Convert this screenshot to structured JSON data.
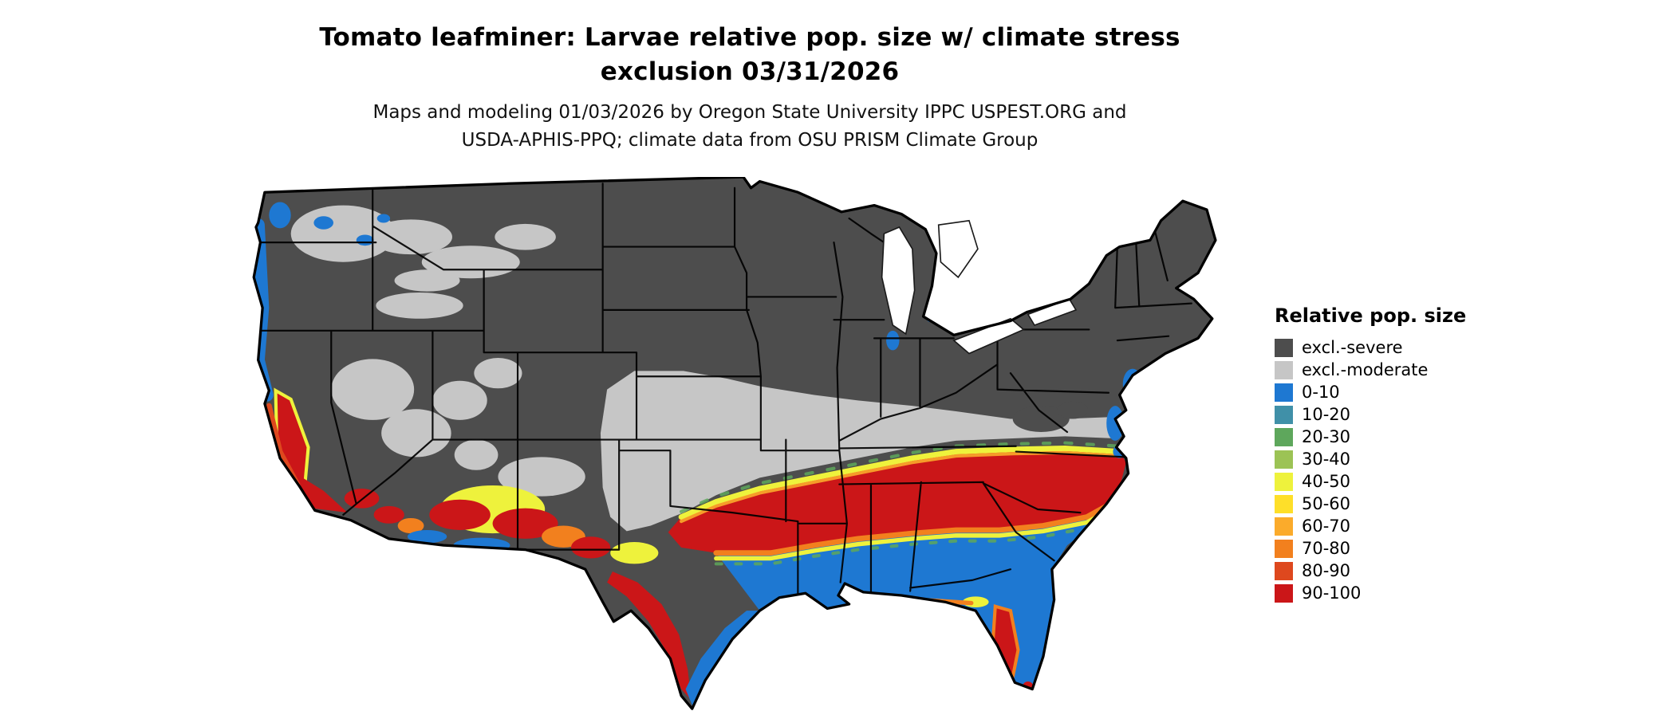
{
  "title": {
    "line1": "Tomato leafminer: Larvae relative pop. size w/ climate stress",
    "line2": "exclusion 03/31/2026"
  },
  "subtitle": {
    "line1": "Maps and modeling 01/03/2026 by Oregon State University IPPC USPEST.ORG and",
    "line2": "USDA-APHIS-PPQ; climate data from OSU PRISM Climate Group"
  },
  "legend": {
    "title": "Relative pop. size",
    "items": [
      {
        "label": "excl.-severe",
        "color": "#4d4d4d"
      },
      {
        "label": "excl.-moderate",
        "color": "#c6c6c6"
      },
      {
        "label": "0-10",
        "color": "#1e78d2"
      },
      {
        "label": "10-20",
        "color": "#4090a8"
      },
      {
        "label": "20-30",
        "color": "#5ea75c"
      },
      {
        "label": "30-40",
        "color": "#9cc355"
      },
      {
        "label": "40-50",
        "color": "#eef23c"
      },
      {
        "label": "50-60",
        "color": "#fedf29"
      },
      {
        "label": "60-70",
        "color": "#fbab2b"
      },
      {
        "label": "70-80",
        "color": "#f2801e"
      },
      {
        "label": "80-90",
        "color": "#de481e"
      },
      {
        "label": "90-100",
        "color": "#cb1618"
      }
    ]
  },
  "map": {
    "outline_color": "#000000",
    "water_color": "#ffffff"
  }
}
